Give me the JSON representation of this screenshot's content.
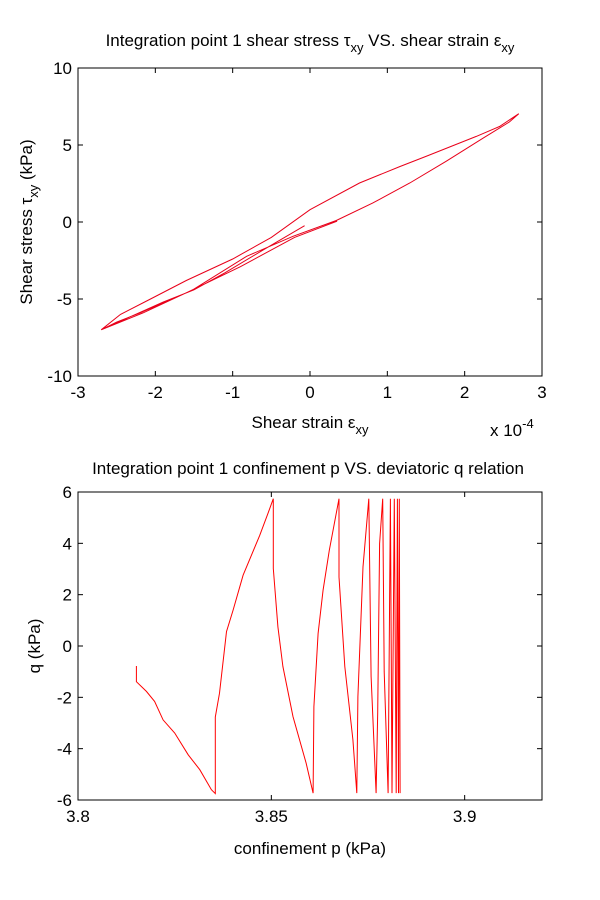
{
  "chart_data": [
    {
      "type": "line",
      "title": {
        "t1": "Integration point 1 shear stress ",
        "s1": "τ",
        "sub1": "xy",
        "t2": " VS. shear strain ",
        "s2": "ε",
        "sub2": "xy"
      },
      "xlabel": {
        "t": "Shear strain ",
        "s": "ε",
        "sub": "xy"
      },
      "ylabel": {
        "t": "Shear stress ",
        "s": "τ",
        "sub": "xy",
        "t2": " (kPa)"
      },
      "x_multiplier": {
        "t": "x 10",
        "exp": "-4"
      },
      "xlim": [
        -3,
        3
      ],
      "ylim": [
        -10,
        10
      ],
      "xticks": [
        "-3",
        "-2",
        "-1",
        "0",
        "1",
        "2",
        "3"
      ],
      "yticks": [
        "-10",
        "-5",
        "0",
        "5",
        "10"
      ],
      "grid": false,
      "color": "#e8001a",
      "x": [
        -0.07,
        -0.6,
        -1.1,
        -1.5,
        -1.9,
        -2.3,
        -2.7,
        -2.45,
        -2.1,
        -1.6,
        -1.0,
        -0.5,
        0.0,
        0.64,
        1.16,
        1.5,
        2.15,
        2.45,
        2.7,
        2.58,
        2.24,
        1.76,
        1.29,
        0.81,
        0.34,
        -0.22,
        -0.82,
        -1.51,
        -2.16,
        -2.7,
        -2.5,
        -2.2,
        -1.6,
        -0.9,
        -0.2,
        0.35
      ],
      "y": [
        -0.24,
        -1.8,
        -3.3,
        -4.4,
        -5.2,
        -6.1,
        -7.0,
        -6.0,
        -5.1,
        -3.8,
        -2.4,
        -1.0,
        0.8,
        2.53,
        3.6,
        4.26,
        5.56,
        6.2,
        7.03,
        6.5,
        5.45,
        3.94,
        2.53,
        1.23,
        0.1,
        -0.93,
        -2.23,
        -4.39,
        -5.9,
        -7.0,
        -6.5,
        -5.9,
        -4.6,
        -2.9,
        -1.0,
        0.05
      ]
    },
    {
      "type": "line",
      "title": "Integration point 1 confinement p VS. deviatoric q relation",
      "xlabel": "confinement p (kPa)",
      "ylabel": "q (kPa)",
      "xlim": [
        3.8,
        3.92
      ],
      "ylim": [
        -6,
        6
      ],
      "xticks": [
        "3.8",
        "3.85",
        "3.9"
      ],
      "xtick_values": [
        3.8,
        3.85,
        3.9
      ],
      "yticks": [
        "-6",
        "-4",
        "-2",
        "0",
        "2",
        "4",
        "6"
      ],
      "grid": false,
      "color": "#ff0000",
      "x": [
        3.8151,
        3.8151,
        3.8177,
        3.8198,
        3.822,
        3.825,
        3.8285,
        3.8315,
        3.8345,
        3.8355,
        3.8355,
        3.8366,
        3.8384,
        3.8401,
        3.8427,
        3.847,
        3.8491,
        3.8505,
        3.8505,
        3.8517,
        3.853,
        3.8556,
        3.859,
        3.8608,
        3.861,
        3.8621,
        3.8634,
        3.865,
        3.8675,
        3.8675,
        3.869,
        3.8711,
        3.8721,
        3.8724,
        3.8737,
        3.8752,
        3.8758,
        3.8771,
        3.8775,
        3.878,
        3.8788,
        3.8792,
        3.8802,
        3.8808,
        3.8812,
        3.8818,
        3.8823,
        3.8826,
        3.8829,
        3.8831,
        3.8833
      ],
      "y": [
        -0.78,
        -1.39,
        -1.77,
        -2.16,
        -2.88,
        -3.39,
        -4.24,
        -4.82,
        -5.6,
        -5.75,
        -2.77,
        -1.84,
        0.56,
        1.4,
        2.76,
        4.31,
        5.16,
        5.74,
        3.02,
        0.75,
        -0.8,
        -2.75,
        -4.56,
        -5.73,
        -2.36,
        0.49,
        2.18,
        3.73,
        5.74,
        2.69,
        -0.8,
        -3.65,
        -5.73,
        -1.97,
        3.08,
        5.74,
        -1.19,
        -5.73,
        -2.6,
        3.99,
        5.74,
        -1.0,
        -5.73,
        5.74,
        -5.73,
        5.74,
        -5.73,
        5.74,
        -5.73,
        5.74,
        -5.73
      ]
    }
  ]
}
